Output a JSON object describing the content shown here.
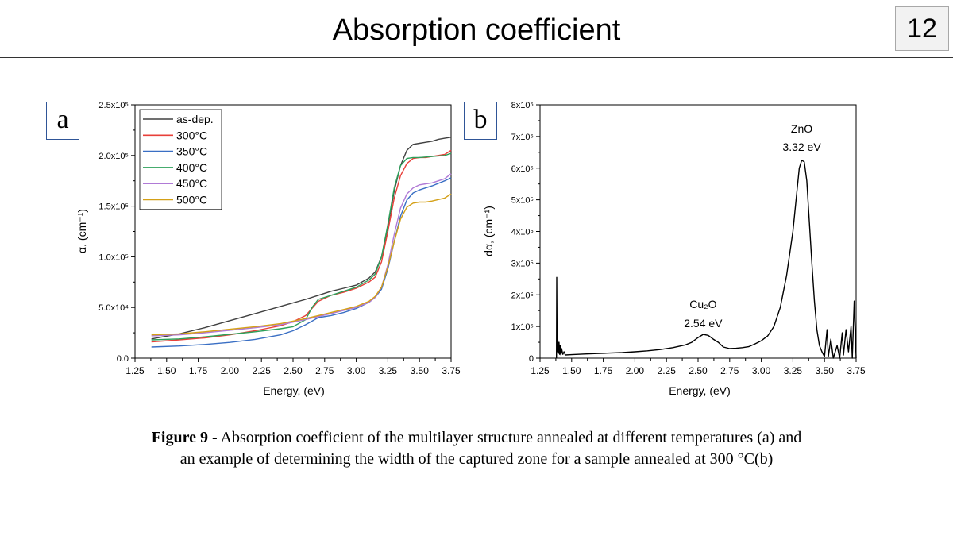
{
  "slide": {
    "title": "Absorption coefficient",
    "number": "12"
  },
  "panels": {
    "a": "a",
    "b": "b"
  },
  "caption": {
    "bold": "Figure 9 -",
    "line1": " Absorption coefficient of the multilayer structure annealed at different temperatures (a) and",
    "line2": "an example of determining the width of the captured zone for a sample annealed at 300 °C(b)"
  },
  "chart_data": [
    {
      "type": "line",
      "panel": "a",
      "xlabel": "Energy, (eV)",
      "ylabel": "α, (cm⁻¹)",
      "xlim": [
        1.25,
        3.75
      ],
      "ylim": [
        0,
        250000
      ],
      "x_ticks": [
        "1.25",
        "1.50",
        "1.75",
        "2.00",
        "2.25",
        "2.50",
        "2.75",
        "3.00",
        "3.25",
        "3.50",
        "3.75"
      ],
      "y_ticks": [
        "0.0",
        "5.0x10⁴",
        "1.0x10⁵",
        "1.5x10⁵",
        "2.0x10⁵",
        "2.5x10⁵"
      ],
      "legend_position": "top-left",
      "series": [
        {
          "name": "as-dep.",
          "color": "#404040",
          "points": [
            [
              1.38,
              19000
            ],
            [
              1.6,
              24000
            ],
            [
              1.8,
              30000
            ],
            [
              2.0,
              37000
            ],
            [
              2.2,
              44000
            ],
            [
              2.4,
              51000
            ],
            [
              2.6,
              58000
            ],
            [
              2.7,
              62000
            ],
            [
              2.8,
              66000
            ],
            [
              2.9,
              69000
            ],
            [
              3.0,
              72000
            ],
            [
              3.1,
              79000
            ],
            [
              3.15,
              85000
            ],
            [
              3.2,
              100000
            ],
            [
              3.25,
              130000
            ],
            [
              3.3,
              165000
            ],
            [
              3.35,
              190000
            ],
            [
              3.4,
              205000
            ],
            [
              3.45,
              211000
            ],
            [
              3.5,
              212000
            ],
            [
              3.55,
              213000
            ],
            [
              3.6,
              214000
            ],
            [
              3.65,
              216000
            ],
            [
              3.7,
              217000
            ],
            [
              3.75,
              218000
            ]
          ]
        },
        {
          "name": "300°C",
          "color": "#e8403a",
          "points": [
            [
              1.38,
              16000
            ],
            [
              1.6,
              18000
            ],
            [
              1.8,
              20000
            ],
            [
              2.0,
              23000
            ],
            [
              2.2,
              27000
            ],
            [
              2.4,
              32000
            ],
            [
              2.5,
              36000
            ],
            [
              2.6,
              42000
            ],
            [
              2.7,
              56000
            ],
            [
              2.8,
              62000
            ],
            [
              2.9,
              65000
            ],
            [
              3.0,
              69000
            ],
            [
              3.1,
              75000
            ],
            [
              3.15,
              80000
            ],
            [
              3.2,
              95000
            ],
            [
              3.25,
              125000
            ],
            [
              3.3,
              158000
            ],
            [
              3.35,
              180000
            ],
            [
              3.4,
              192000
            ],
            [
              3.45,
              197000
            ],
            [
              3.5,
              198000
            ],
            [
              3.55,
              198000
            ],
            [
              3.6,
              199000
            ],
            [
              3.7,
              201000
            ],
            [
              3.75,
              205000
            ]
          ]
        },
        {
          "name": "350°C",
          "color": "#3a6fc4",
          "points": [
            [
              1.38,
              11000
            ],
            [
              1.6,
              12000
            ],
            [
              1.8,
              13500
            ],
            [
              2.0,
              15500
            ],
            [
              2.2,
              18500
            ],
            [
              2.4,
              23000
            ],
            [
              2.5,
              27000
            ],
            [
              2.6,
              33000
            ],
            [
              2.7,
              40000
            ],
            [
              2.8,
              42000
            ],
            [
              2.9,
              45000
            ],
            [
              3.0,
              49000
            ],
            [
              3.1,
              55000
            ],
            [
              3.15,
              60000
            ],
            [
              3.2,
              68000
            ],
            [
              3.25,
              88000
            ],
            [
              3.3,
              115000
            ],
            [
              3.35,
              140000
            ],
            [
              3.4,
              156000
            ],
            [
              3.45,
              163000
            ],
            [
              3.5,
              166000
            ],
            [
              3.55,
              168000
            ],
            [
              3.6,
              170000
            ],
            [
              3.7,
              175000
            ],
            [
              3.75,
              178000
            ]
          ]
        },
        {
          "name": "400°C",
          "color": "#2ca05a",
          "points": [
            [
              1.38,
              18000
            ],
            [
              1.6,
              19000
            ],
            [
              1.8,
              21000
            ],
            [
              2.0,
              23500
            ],
            [
              2.2,
              26000
            ],
            [
              2.4,
              29000
            ],
            [
              2.5,
              31000
            ],
            [
              2.6,
              38000
            ],
            [
              2.65,
              50000
            ],
            [
              2.7,
              58000
            ],
            [
              2.8,
              62000
            ],
            [
              2.9,
              66000
            ],
            [
              3.0,
              70000
            ],
            [
              3.1,
              77000
            ],
            [
              3.15,
              83000
            ],
            [
              3.2,
              100000
            ],
            [
              3.25,
              132000
            ],
            [
              3.3,
              168000
            ],
            [
              3.35,
              190000
            ],
            [
              3.4,
              197000
            ],
            [
              3.45,
              198000
            ],
            [
              3.5,
              198000
            ],
            [
              3.6,
              199000
            ],
            [
              3.7,
              200000
            ],
            [
              3.75,
              202000
            ]
          ]
        },
        {
          "name": "450°C",
          "color": "#b07ad6",
          "points": [
            [
              1.38,
              22000
            ],
            [
              1.6,
              23000
            ],
            [
              1.8,
              25000
            ],
            [
              2.0,
              27500
            ],
            [
              2.2,
              30000
            ],
            [
              2.4,
              33000
            ],
            [
              2.6,
              38000
            ],
            [
              2.7,
              41000
            ],
            [
              2.8,
              44000
            ],
            [
              2.9,
              47000
            ],
            [
              3.0,
              50000
            ],
            [
              3.1,
              55000
            ],
            [
              3.15,
              60000
            ],
            [
              3.2,
              70000
            ],
            [
              3.25,
              92000
            ],
            [
              3.3,
              122000
            ],
            [
              3.35,
              148000
            ],
            [
              3.4,
              162000
            ],
            [
              3.45,
              168000
            ],
            [
              3.5,
              171000
            ],
            [
              3.55,
              172000
            ],
            [
              3.6,
              173000
            ],
            [
              3.7,
              177000
            ],
            [
              3.75,
              182000
            ]
          ]
        },
        {
          "name": "500°C",
          "color": "#d4a017",
          "points": [
            [
              1.38,
              23000
            ],
            [
              1.6,
              24000
            ],
            [
              1.8,
              26000
            ],
            [
              2.0,
              28500
            ],
            [
              2.2,
              31000
            ],
            [
              2.4,
              34000
            ],
            [
              2.6,
              39000
            ],
            [
              2.7,
              42000
            ],
            [
              2.8,
              45000
            ],
            [
              2.9,
              48000
            ],
            [
              3.0,
              51000
            ],
            [
              3.1,
              56000
            ],
            [
              3.15,
              61000
            ],
            [
              3.2,
              70000
            ],
            [
              3.25,
              90000
            ],
            [
              3.3,
              115000
            ],
            [
              3.35,
              137000
            ],
            [
              3.4,
              149000
            ],
            [
              3.45,
              153000
            ],
            [
              3.5,
              154000
            ],
            [
              3.55,
              154000
            ],
            [
              3.6,
              155000
            ],
            [
              3.7,
              158000
            ],
            [
              3.75,
              162000
            ]
          ]
        }
      ]
    },
    {
      "type": "line",
      "panel": "b",
      "xlabel": "Energy, (eV)",
      "ylabel": "dα, (cm⁻¹)",
      "xlim": [
        1.25,
        3.75
      ],
      "ylim": [
        0,
        800000
      ],
      "x_ticks": [
        "1.25",
        "1.50",
        "1.75",
        "2.00",
        "2.25",
        "2.50",
        "2.75",
        "3.00",
        "3.25",
        "3.50",
        "3.75"
      ],
      "y_ticks": [
        "0",
        "1x10⁵",
        "2x10⁵",
        "3x10⁵",
        "4x10⁵",
        "5x10⁵",
        "6x10⁵",
        "7x10⁵",
        "8x10⁵"
      ],
      "annotations": [
        {
          "name": "Cu₂O",
          "value": "2.54 eV",
          "x": 2.54
        },
        {
          "name": "ZnO",
          "value": "3.32 eV",
          "x": 3.32
        }
      ],
      "series": [
        {
          "name": "",
          "color": "#000000",
          "points": [
            [
              1.38,
              0
            ],
            [
              1.382,
              255000
            ],
            [
              1.385,
              20000
            ],
            [
              1.39,
              60000
            ],
            [
              1.395,
              15000
            ],
            [
              1.4,
              50000
            ],
            [
              1.405,
              12000
            ],
            [
              1.41,
              40000
            ],
            [
              1.415,
              10000
            ],
            [
              1.42,
              30000
            ],
            [
              1.43,
              12000
            ],
            [
              1.44,
              20000
            ],
            [
              1.45,
              10000
            ],
            [
              1.5,
              11000
            ],
            [
              1.6,
              13000
            ],
            [
              1.7,
              14500
            ],
            [
              1.8,
              16000
            ],
            [
              1.9,
              17500
            ],
            [
              2.0,
              20000
            ],
            [
              2.1,
              23000
            ],
            [
              2.2,
              27000
            ],
            [
              2.3,
              33000
            ],
            [
              2.4,
              42000
            ],
            [
              2.45,
              50000
            ],
            [
              2.5,
              65000
            ],
            [
              2.54,
              75000
            ],
            [
              2.58,
              72000
            ],
            [
              2.62,
              60000
            ],
            [
              2.66,
              50000
            ],
            [
              2.7,
              35000
            ],
            [
              2.75,
              30000
            ],
            [
              2.8,
              31000
            ],
            [
              2.85,
              33000
            ],
            [
              2.9,
              36000
            ],
            [
              2.95,
              45000
            ],
            [
              3.0,
              55000
            ],
            [
              3.05,
              70000
            ],
            [
              3.1,
              100000
            ],
            [
              3.15,
              160000
            ],
            [
              3.2,
              260000
            ],
            [
              3.25,
              400000
            ],
            [
              3.28,
              520000
            ],
            [
              3.3,
              600000
            ],
            [
              3.32,
              625000
            ],
            [
              3.34,
              620000
            ],
            [
              3.36,
              560000
            ],
            [
              3.38,
              430000
            ],
            [
              3.4,
              300000
            ],
            [
              3.42,
              180000
            ],
            [
              3.44,
              90000
            ],
            [
              3.46,
              40000
            ],
            [
              3.48,
              20000
            ],
            [
              3.5,
              5000
            ],
            [
              3.52,
              90000
            ],
            [
              3.53,
              5000
            ],
            [
              3.55,
              60000
            ],
            [
              3.57,
              0
            ],
            [
              3.6,
              40000
            ],
            [
              3.62,
              0
            ],
            [
              3.64,
              80000
            ],
            [
              3.65,
              10000
            ],
            [
              3.67,
              90000
            ],
            [
              3.69,
              20000
            ],
            [
              3.71,
              100000
            ],
            [
              3.72,
              0
            ],
            [
              3.735,
              180000
            ],
            [
              3.75,
              0
            ]
          ]
        }
      ]
    }
  ]
}
